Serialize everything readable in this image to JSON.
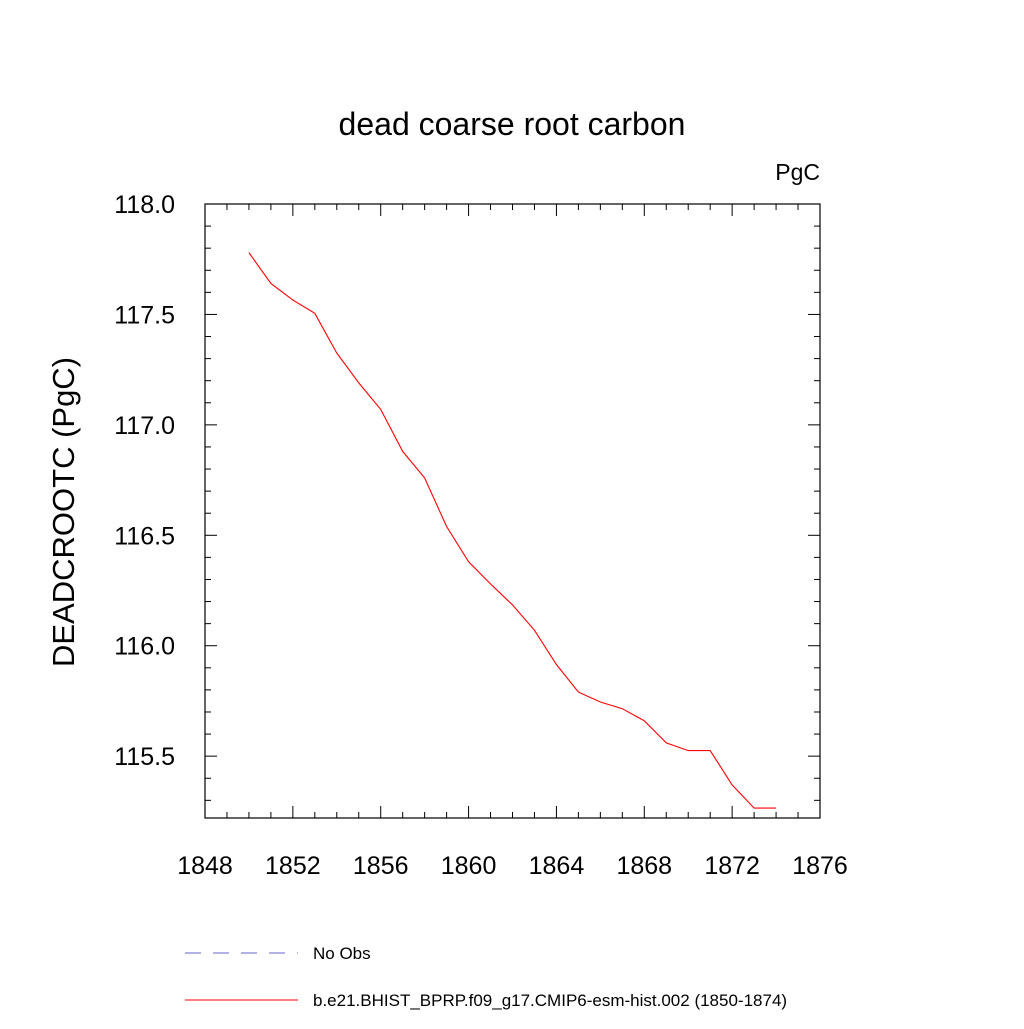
{
  "chart_data": {
    "type": "line",
    "title": "dead coarse root carbon",
    "units": "PgC",
    "xlabel": "",
    "ylabel": "DEADCROOTC  (PgC)",
    "xlim": [
      1848,
      1876
    ],
    "ylim": [
      115.22,
      118.0
    ],
    "x_ticks": [
      1848,
      1852,
      1856,
      1860,
      1864,
      1868,
      1872,
      1876
    ],
    "x_tick_labels": [
      "1848",
      "1852",
      "1856",
      "1860",
      "1864",
      "1868",
      "1872",
      "1876"
    ],
    "y_ticks": [
      115.5,
      116.0,
      116.5,
      117.0,
      117.5,
      118.0
    ],
    "y_tick_labels": [
      "115.5",
      "116.0",
      "116.5",
      "117.0",
      "117.5",
      "118.0"
    ],
    "grid": false,
    "legend_position": "bottom",
    "series": [
      {
        "name": "b.e21.BHIST_BPRP.f09_g17.CMIP6-esm-hist.002 (1850-1874)",
        "color": "#ff0000",
        "style": "solid",
        "x": [
          1850,
          1851,
          1852,
          1853,
          1854,
          1855,
          1856,
          1857,
          1858,
          1859,
          1860,
          1861,
          1862,
          1863,
          1864,
          1865,
          1866,
          1867,
          1868,
          1869,
          1870,
          1871,
          1872,
          1873,
          1874
        ],
        "y": [
          117.78,
          117.64,
          117.565,
          117.505,
          117.325,
          117.19,
          117.07,
          116.88,
          116.76,
          116.54,
          116.38,
          116.28,
          116.185,
          116.07,
          115.915,
          115.79,
          115.745,
          115.715,
          115.66,
          115.56,
          115.525,
          115.525,
          115.37,
          115.265,
          115.265
        ]
      }
    ],
    "legend": [
      {
        "label": "No Obs",
        "color": "#6666cc",
        "style": "dashed"
      },
      {
        "label": "b.e21.BHIST_BPRP.f09_g17.CMIP6-esm-hist.002 (1850-1874)",
        "color": "#ff0000",
        "style": "solid"
      }
    ]
  }
}
